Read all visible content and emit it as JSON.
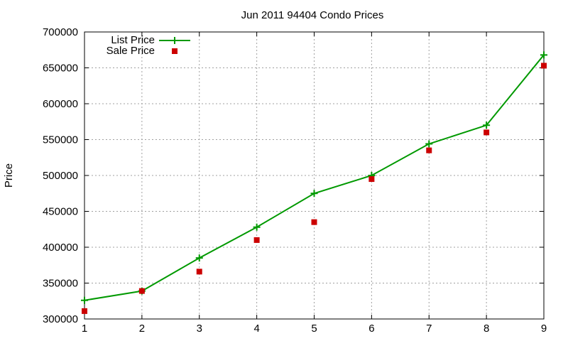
{
  "chart_data": {
    "type": "line",
    "title": "Jun 2011 94404 Condo Prices",
    "xlabel": "",
    "ylabel": "Price",
    "xlim": [
      1,
      9
    ],
    "ylim": [
      300000,
      700000
    ],
    "x_ticks": [
      "1",
      "2",
      "3",
      "4",
      "5",
      "6",
      "7",
      "8",
      "9"
    ],
    "y_ticks": [
      "300000",
      "350000",
      "400000",
      "450000",
      "500000",
      "550000",
      "600000",
      "650000",
      "700000"
    ],
    "grid": true,
    "legend_position": "top-left",
    "x": [
      1,
      2,
      3,
      4,
      5,
      6,
      7,
      8,
      9
    ],
    "series": [
      {
        "name": "List Price",
        "style": "line-with-plus-markers",
        "color": "#009900",
        "values": [
          326000,
          339000,
          385000,
          428000,
          475000,
          500000,
          544000,
          570000,
          668000
        ]
      },
      {
        "name": "Sale Price",
        "style": "square-markers",
        "color": "#cc0000",
        "values": [
          311000,
          339000,
          366000,
          410000,
          435000,
          495000,
          535000,
          560000,
          653000
        ]
      }
    ]
  }
}
